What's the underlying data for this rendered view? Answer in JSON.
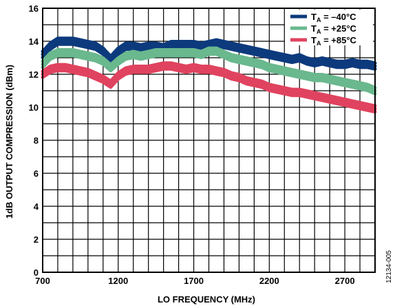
{
  "chart_data": {
    "type": "line",
    "xlabel": "LO FREQUENCY (MHz)",
    "ylabel": "1dB OUTPUT COMPRESSION (dBm)",
    "xlim": [
      700,
      2900
    ],
    "ylim": [
      0,
      16
    ],
    "x_ticks": [
      700,
      1200,
      1700,
      2200,
      2700
    ],
    "y_ticks": [
      0,
      2,
      4,
      6,
      8,
      10,
      12,
      14,
      16
    ],
    "x_tick_labels": [
      "700",
      "1200",
      "1700",
      "2200",
      "2700"
    ],
    "y_tick_labels": [
      "0",
      "2",
      "4",
      "6",
      "8",
      "10",
      "12",
      "14",
      "16"
    ],
    "grid": true,
    "legend_position": "top-right",
    "figure_id": "12134-005",
    "series": [
      {
        "legend_main": "T",
        "legend_sub": "A",
        "legend_value": " = –40°C",
        "color": "#0c3a7d",
        "x": [
          700,
          750,
          800,
          850,
          900,
          950,
          1000,
          1050,
          1100,
          1150,
          1200,
          1250,
          1300,
          1350,
          1400,
          1450,
          1500,
          1550,
          1600,
          1650,
          1700,
          1750,
          1800,
          1850,
          1900,
          1950,
          2000,
          2050,
          2100,
          2150,
          2200,
          2250,
          2300,
          2350,
          2400,
          2450,
          2500,
          2550,
          2600,
          2650,
          2700,
          2750,
          2800,
          2850,
          2900
        ],
        "y": [
          13.2,
          13.7,
          14.0,
          14.0,
          14.0,
          13.9,
          13.8,
          13.7,
          13.4,
          12.9,
          13.4,
          13.7,
          13.7,
          13.6,
          13.7,
          13.7,
          13.6,
          13.8,
          13.8,
          13.8,
          13.8,
          13.7,
          13.8,
          13.9,
          13.8,
          13.7,
          13.6,
          13.5,
          13.4,
          13.3,
          13.2,
          13.1,
          13.0,
          12.9,
          13.0,
          12.8,
          12.7,
          12.8,
          12.7,
          12.6,
          12.6,
          12.7,
          12.6,
          12.6,
          12.5
        ]
      },
      {
        "legend_main": "T",
        "legend_sub": "A",
        "legend_value": " = +25°C",
        "color": "#6ab88e",
        "x": [
          700,
          750,
          800,
          850,
          900,
          950,
          1000,
          1050,
          1100,
          1150,
          1200,
          1250,
          1300,
          1350,
          1400,
          1450,
          1500,
          1550,
          1600,
          1650,
          1700,
          1750,
          1800,
          1850,
          1900,
          1950,
          2000,
          2050,
          2100,
          2150,
          2200,
          2250,
          2300,
          2350,
          2400,
          2450,
          2500,
          2550,
          2600,
          2650,
          2700,
          2750,
          2800,
          2850,
          2900
        ],
        "y": [
          12.6,
          13.1,
          13.3,
          13.3,
          13.3,
          13.2,
          13.1,
          13.0,
          12.8,
          12.4,
          12.8,
          13.1,
          13.2,
          13.1,
          13.2,
          13.3,
          13.3,
          13.3,
          13.3,
          13.3,
          13.3,
          13.2,
          13.4,
          13.4,
          13.2,
          13.0,
          12.9,
          12.8,
          12.7,
          12.6,
          12.4,
          12.3,
          12.2,
          12.1,
          12.0,
          11.9,
          11.8,
          11.8,
          11.7,
          11.6,
          11.5,
          11.4,
          11.3,
          11.2,
          11.0
        ]
      },
      {
        "legend_main": "T",
        "legend_sub": "A",
        "legend_value": " = +85°C",
        "color": "#e0435f",
        "x": [
          700,
          750,
          800,
          850,
          900,
          950,
          1000,
          1050,
          1100,
          1150,
          1200,
          1250,
          1300,
          1350,
          1400,
          1450,
          1500,
          1550,
          1600,
          1650,
          1700,
          1750,
          1800,
          1850,
          1900,
          1950,
          2000,
          2050,
          2100,
          2150,
          2200,
          2250,
          2300,
          2350,
          2400,
          2450,
          2500,
          2550,
          2600,
          2650,
          2700,
          2750,
          2800,
          2850,
          2900
        ],
        "y": [
          12.0,
          12.3,
          12.4,
          12.4,
          12.3,
          12.2,
          12.1,
          11.9,
          11.7,
          11.4,
          11.9,
          12.2,
          12.3,
          12.3,
          12.3,
          12.4,
          12.5,
          12.5,
          12.4,
          12.3,
          12.4,
          12.3,
          12.3,
          12.2,
          12.1,
          11.9,
          11.8,
          11.6,
          11.5,
          11.4,
          11.2,
          11.1,
          11.0,
          10.9,
          10.9,
          10.8,
          10.7,
          10.6,
          10.5,
          10.4,
          10.3,
          10.2,
          10.1,
          10.0,
          9.9
        ]
      }
    ]
  }
}
